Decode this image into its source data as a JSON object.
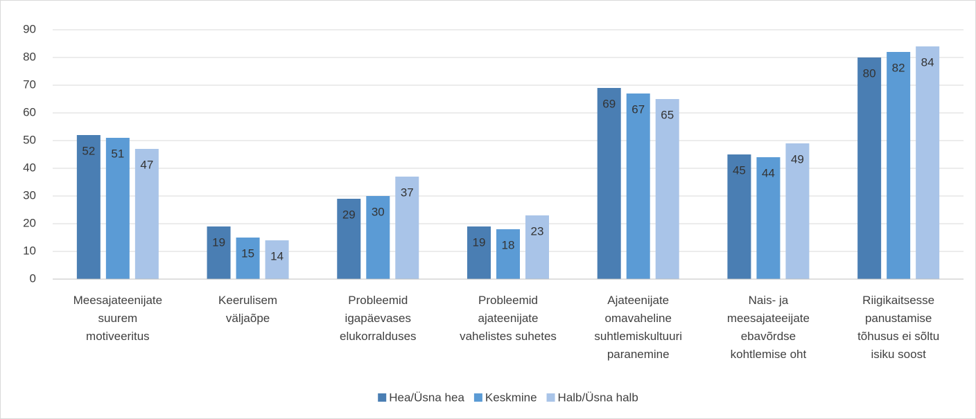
{
  "chart_data": {
    "type": "bar",
    "categories": [
      "Meesajateenijate\nsuurem\nmotiveeritus",
      "Keerulisem\nväljaõpe",
      "Probleemid\nigapäevases\nelukorralduses",
      "Probleemid\najateenijate\nvahelistes suhetes",
      "Ajateenijate\nomavaheline\nsuhtlemiskultuuri\nparanemine",
      "Nais- ja\nmeesajateeijate\nebavõrdse\nkohtlemise oht",
      "Riigikaitsesse\npanustamise\ntõhusus ei sõltu\nisiku soost"
    ],
    "series": [
      {
        "name": "Hea/Üsna hea",
        "color": "#4a7eb3",
        "values": [
          52,
          19,
          29,
          19,
          69,
          45,
          80
        ]
      },
      {
        "name": "Keskmine",
        "color": "#5b9bd5",
        "values": [
          51,
          15,
          30,
          18,
          67,
          44,
          82
        ]
      },
      {
        "name": "Halb/Üsna halb",
        "color": "#a9c4e8",
        "values": [
          47,
          14,
          37,
          23,
          65,
          49,
          84
        ]
      }
    ],
    "ylim": [
      0,
      90
    ],
    "yticks": [
      0,
      10,
      20,
      30,
      40,
      50,
      60,
      70,
      80,
      90
    ],
    "grid": true,
    "legend": "bottom"
  }
}
